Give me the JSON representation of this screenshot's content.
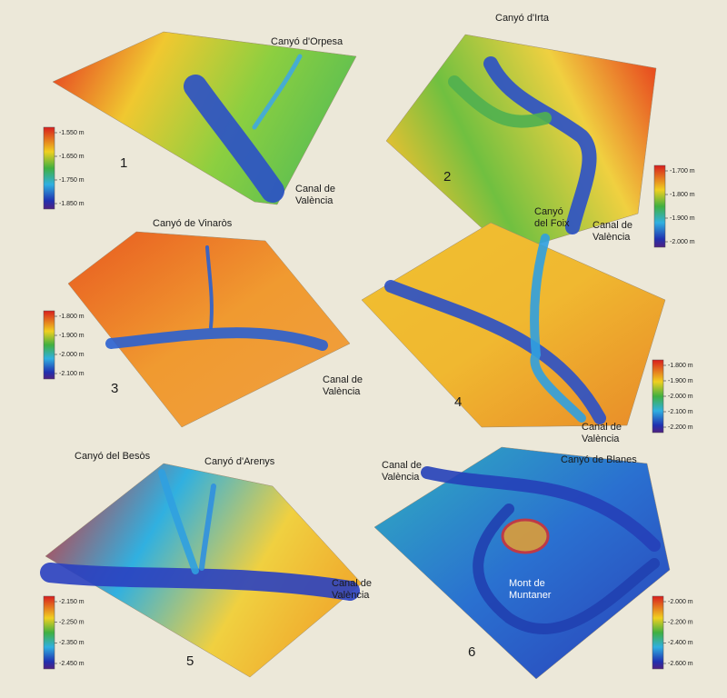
{
  "panels": [
    {
      "number": "1",
      "labels": [
        {
          "lines": [
            "Canyó d'Orpesa"
          ]
        },
        {
          "lines": [
            "Canal de",
            "València"
          ]
        }
      ],
      "scale": [
        "-1.550 m",
        "-1.650 m",
        "-1.750 m",
        "-1.850 m"
      ]
    },
    {
      "number": "2",
      "labels": [
        {
          "lines": [
            "Canyó d'Irta"
          ]
        },
        {
          "lines": [
            "Canal de",
            "València"
          ]
        }
      ],
      "scale": [
        "-1.700 m",
        "-1.800 m",
        "-1.900 m",
        "-2.000 m"
      ]
    },
    {
      "number": "3",
      "labels": [
        {
          "lines": [
            "Canyó de Vinaròs"
          ]
        },
        {
          "lines": [
            "Canal de",
            "València"
          ]
        }
      ],
      "scale": [
        "-1.800 m",
        "-1.900 m",
        "-2.000 m",
        "-2.100 m"
      ]
    },
    {
      "number": "4",
      "labels": [
        {
          "lines": [
            "Canyó",
            "del Foix"
          ]
        },
        {
          "lines": [
            "Canal de",
            "València"
          ]
        }
      ],
      "scale": [
        "-1.800 m",
        "-1.900 m",
        "-2.000 m",
        "-2.100 m",
        "-2.200 m"
      ]
    },
    {
      "number": "5",
      "labels": [
        {
          "lines": [
            "Canyó del Besòs"
          ]
        },
        {
          "lines": [
            "Canyó d'Arenys"
          ]
        },
        {
          "lines": [
            "Canal de",
            "València"
          ]
        }
      ],
      "scale": [
        "-2.150 m",
        "-2.250 m",
        "-2.350 m",
        "-2.450 m"
      ]
    },
    {
      "number": "6",
      "labels": [
        {
          "lines": [
            "Canal de",
            "València"
          ]
        },
        {
          "lines": [
            "Canyó de Blanes"
          ]
        },
        {
          "lines": [
            "Mont de",
            "Muntaner"
          ]
        }
      ],
      "scale": [
        "-2.000 m",
        "-2.200 m",
        "-2.400 m",
        "-2.600 m"
      ]
    }
  ]
}
